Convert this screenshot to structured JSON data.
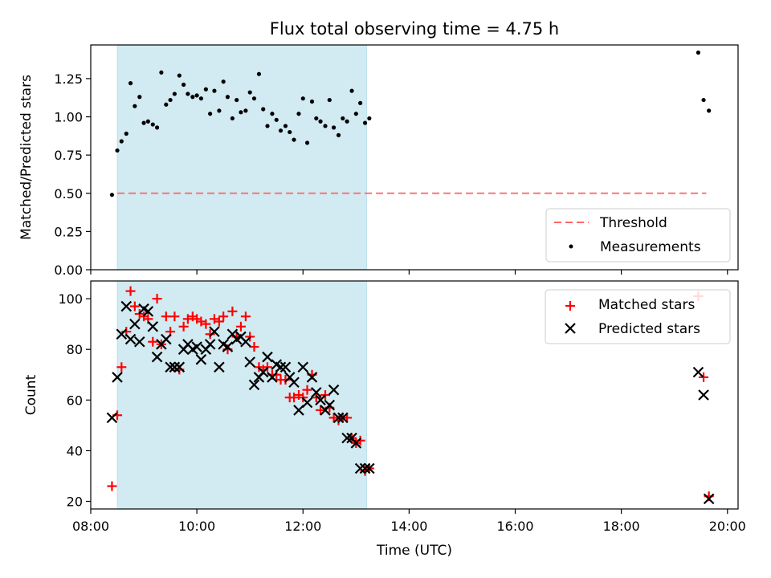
{
  "chart_data": [
    {
      "type": "scatter",
      "title": "Flux total observing time = 4.75 h",
      "xlabel": "",
      "ylabel": "Matched/Predicted stars",
      "xlim": [
        8.0,
        20.2
      ],
      "ylim": [
        0,
        1.47
      ],
      "yticks": [
        0.0,
        0.25,
        0.5,
        0.75,
        1.0,
        1.25
      ],
      "ytick_labels": [
        "0.00",
        "0.25",
        "0.50",
        "0.75",
        "1.00",
        "1.25"
      ],
      "shaded_span": [
        8.5,
        13.2
      ],
      "shaded_color": "#add8e6",
      "legend_position": "lower-right",
      "threshold": {
        "name": "Threshold",
        "value": 0.5,
        "x_range": [
          8.5,
          19.6
        ],
        "color": "#ff6666",
        "style": "dashed"
      },
      "series": [
        {
          "name": "Measurements",
          "marker": "dot",
          "color": "#000000",
          "x": [
            8.4,
            8.5,
            8.58,
            8.67,
            8.75,
            8.83,
            8.92,
            9.0,
            9.08,
            9.17,
            9.25,
            9.33,
            9.42,
            9.5,
            9.58,
            9.67,
            9.75,
            9.83,
            9.92,
            10.0,
            10.08,
            10.17,
            10.25,
            10.33,
            10.42,
            10.5,
            10.58,
            10.67,
            10.75,
            10.83,
            10.92,
            11.0,
            11.08,
            11.17,
            11.25,
            11.33,
            11.42,
            11.5,
            11.58,
            11.67,
            11.75,
            11.83,
            11.92,
            12.0,
            12.08,
            12.17,
            12.25,
            12.33,
            12.42,
            12.5,
            12.58,
            12.67,
            12.75,
            12.83,
            12.92,
            13.0,
            13.08,
            13.17,
            13.25,
            19.45,
            19.55,
            19.65
          ],
          "y": [
            0.49,
            0.78,
            0.84,
            0.89,
            1.22,
            1.07,
            1.13,
            0.96,
            0.97,
            0.95,
            0.93,
            1.29,
            1.08,
            1.11,
            1.15,
            1.27,
            1.21,
            1.15,
            1.13,
            1.14,
            1.12,
            1.18,
            1.02,
            1.17,
            1.04,
            1.23,
            1.13,
            0.99,
            1.11,
            1.03,
            1.04,
            1.16,
            1.12,
            1.28,
            1.05,
            0.94,
            1.02,
            0.98,
            0.91,
            0.94,
            0.9,
            0.85,
            1.02,
            1.12,
            0.83,
            1.1,
            0.99,
            0.97,
            0.94,
            1.11,
            0.93,
            0.88,
            0.99,
            0.97,
            1.17,
            1.02,
            1.09,
            0.96,
            0.99,
            1.42,
            1.11,
            1.04
          ]
        }
      ]
    },
    {
      "type": "scatter",
      "title": "",
      "xlabel": "Time (UTC)",
      "ylabel": "Count",
      "xlim": [
        8.0,
        20.2
      ],
      "ylim": [
        17,
        107
      ],
      "yticks": [
        20,
        40,
        60,
        80,
        100
      ],
      "ytick_labels": [
        "20",
        "40",
        "60",
        "80",
        "100"
      ],
      "xticks": [
        8,
        10,
        12,
        14,
        16,
        18,
        20
      ],
      "xtick_labels": [
        "08:00",
        "10:00",
        "12:00",
        "14:00",
        "16:00",
        "18:00",
        "20:00"
      ],
      "shaded_span": [
        8.5,
        13.2
      ],
      "shaded_color": "#add8e6",
      "legend_position": "upper-right",
      "series": [
        {
          "name": "Matched stars",
          "marker": "plus",
          "color": "#ff0000",
          "x": [
            8.4,
            8.5,
            8.58,
            8.67,
            8.75,
            8.83,
            8.92,
            9.0,
            9.08,
            9.17,
            9.25,
            9.33,
            9.42,
            9.5,
            9.58,
            9.67,
            9.75,
            9.83,
            9.92,
            10.0,
            10.08,
            10.17,
            10.25,
            10.33,
            10.42,
            10.5,
            10.58,
            10.67,
            10.75,
            10.83,
            10.92,
            11.0,
            11.08,
            11.17,
            11.25,
            11.33,
            11.42,
            11.5,
            11.58,
            11.67,
            11.75,
            11.83,
            11.92,
            12.0,
            12.08,
            12.17,
            12.25,
            12.33,
            12.42,
            12.5,
            12.58,
            12.67,
            12.75,
            12.83,
            12.92,
            13.0,
            13.08,
            13.17,
            13.25,
            19.45,
            19.55,
            19.65
          ],
          "y": [
            26,
            54,
            73,
            87,
            103,
            97,
            94,
            93,
            92,
            83,
            100,
            82,
            93,
            87,
            93,
            72,
            89,
            92,
            93,
            92,
            91,
            90,
            86,
            92,
            91,
            93,
            80,
            95,
            85,
            89,
            93,
            85,
            81,
            73,
            72,
            73,
            70,
            70,
            68,
            68,
            61,
            61,
            62,
            61,
            64,
            70,
            61,
            56,
            62,
            57,
            53,
            52,
            53,
            53,
            45,
            43,
            44,
            32,
            33,
            101,
            69,
            22
          ]
        },
        {
          "name": "Predicted stars",
          "marker": "x",
          "color": "#000000",
          "x": [
            8.4,
            8.5,
            8.58,
            8.67,
            8.75,
            8.83,
            8.92,
            9.0,
            9.08,
            9.17,
            9.25,
            9.33,
            9.42,
            9.5,
            9.58,
            9.67,
            9.75,
            9.83,
            9.92,
            10.0,
            10.08,
            10.17,
            10.25,
            10.33,
            10.42,
            10.5,
            10.58,
            10.67,
            10.75,
            10.83,
            10.92,
            11.0,
            11.08,
            11.17,
            11.25,
            11.33,
            11.42,
            11.5,
            11.58,
            11.67,
            11.75,
            11.83,
            11.92,
            12.0,
            12.08,
            12.17,
            12.25,
            12.33,
            12.42,
            12.5,
            12.58,
            12.67,
            12.75,
            12.83,
            12.92,
            13.0,
            13.08,
            13.17,
            13.25,
            19.45,
            19.55,
            19.65
          ],
          "y": [
            53,
            69,
            86,
            97,
            84,
            90,
            83,
            96,
            95,
            89,
            77,
            82,
            84,
            73,
            73,
            73,
            80,
            82,
            80,
            81,
            76,
            80,
            82,
            87,
            73,
            82,
            81,
            86,
            84,
            85,
            83,
            75,
            66,
            69,
            71,
            77,
            69,
            74,
            73,
            73,
            69,
            67,
            56,
            73,
            59,
            69,
            63,
            60,
            56,
            58,
            64,
            53,
            53,
            45,
            45,
            43,
            33,
            33,
            33,
            71,
            62,
            21
          ]
        }
      ]
    }
  ]
}
